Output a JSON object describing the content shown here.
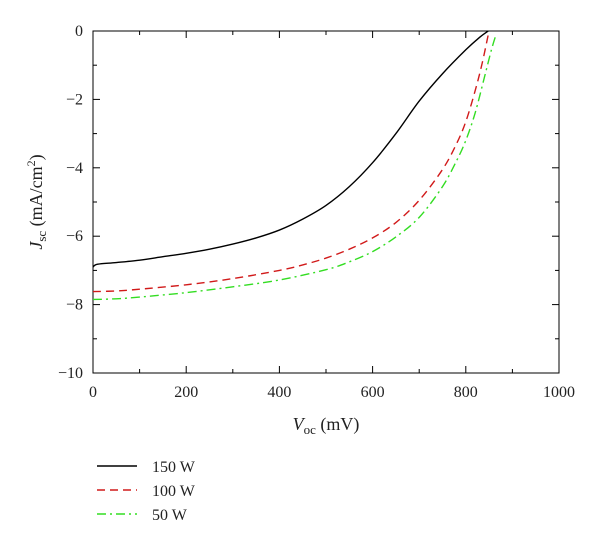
{
  "chart_data": {
    "type": "line",
    "xlabel": {
      "main": "V",
      "sub": "oc",
      "rest": " (mV)"
    },
    "ylabel": {
      "main": "J",
      "sub": "sc",
      "rest": "  (mA/cm",
      "sup": "2",
      "end": ")"
    },
    "xlim": [
      0,
      1000
    ],
    "ylim": [
      -10,
      0
    ],
    "xticks": [
      0,
      200,
      400,
      600,
      800,
      1000
    ],
    "xtick_labels": [
      "0",
      "200",
      "400",
      "600",
      "800",
      "1000"
    ],
    "yticks": [
      0,
      -2,
      -4,
      -6,
      -8,
      -10
    ],
    "ytick_labels": [
      "0",
      "−2",
      "−4",
      "−6",
      "−8",
      "−10"
    ],
    "grid": false,
    "legend_position": "bottom-left, below plot",
    "series": [
      {
        "name": "150 W",
        "color": "#000000",
        "dash": "solid",
        "x": [
          0,
          10,
          50,
          100,
          150,
          200,
          250,
          300,
          350,
          400,
          450,
          500,
          550,
          600,
          650,
          700,
          750,
          800,
          830,
          848
        ],
        "y": [
          -6.9,
          -6.82,
          -6.77,
          -6.7,
          -6.6,
          -6.5,
          -6.38,
          -6.23,
          -6.05,
          -5.82,
          -5.5,
          -5.1,
          -4.55,
          -3.85,
          -3.0,
          -2.05,
          -1.25,
          -0.55,
          -0.18,
          0
        ]
      },
      {
        "name": "100 W",
        "color": "#d11a1a",
        "dash": "dashed",
        "x": [
          0,
          50,
          100,
          200,
          300,
          400,
          450,
          500,
          550,
          600,
          650,
          700,
          750,
          780,
          800,
          820,
          835,
          848
        ],
        "y": [
          -7.62,
          -7.6,
          -7.55,
          -7.42,
          -7.24,
          -7.0,
          -6.84,
          -6.64,
          -6.38,
          -6.05,
          -5.6,
          -4.95,
          -4.05,
          -3.3,
          -2.65,
          -1.75,
          -0.95,
          -0.12
        ]
      },
      {
        "name": "50 W",
        "color": "#33dd22",
        "dash": "dash-dot",
        "x": [
          0,
          50,
          100,
          200,
          300,
          400,
          500,
          550,
          600,
          650,
          700,
          750,
          780,
          800,
          820,
          840,
          855,
          865
        ],
        "y": [
          -7.85,
          -7.83,
          -7.78,
          -7.65,
          -7.48,
          -7.28,
          -6.98,
          -6.75,
          -6.45,
          -6.02,
          -5.45,
          -4.55,
          -3.8,
          -3.2,
          -2.4,
          -1.35,
          -0.55,
          -0.1
        ]
      }
    ]
  }
}
